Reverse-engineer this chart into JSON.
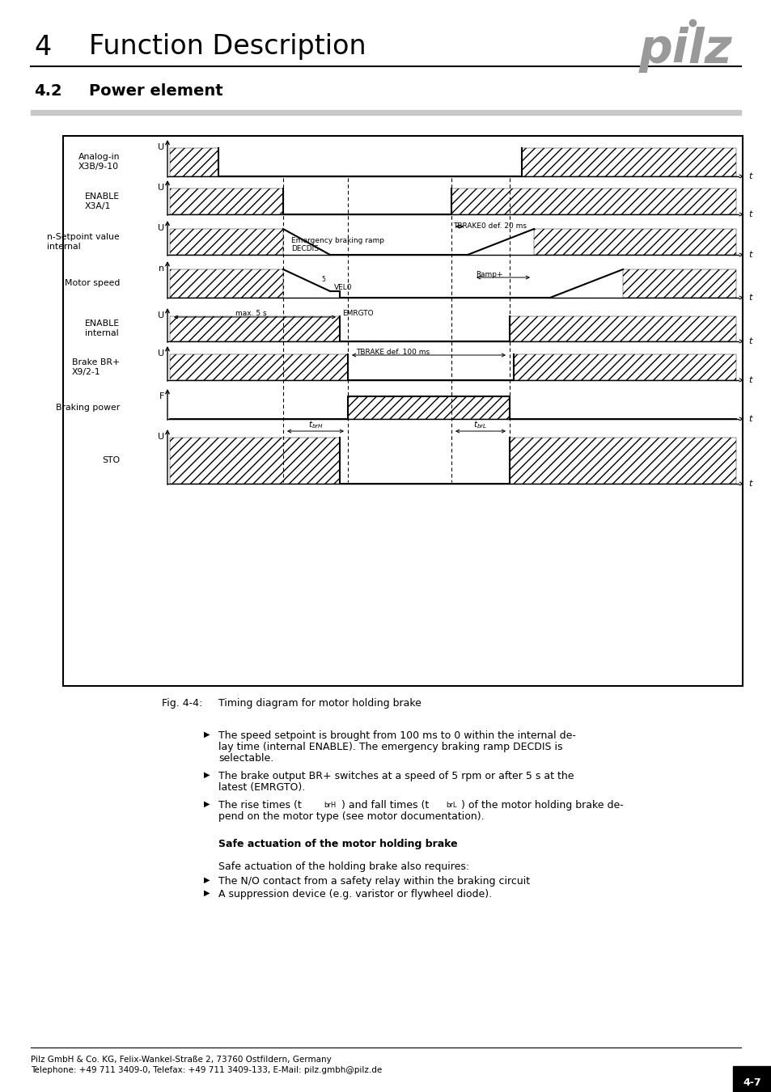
{
  "title_num": "4",
  "title_text": "Function Description",
  "section_num": "4.2",
  "section_title": "Power element",
  "page_label": "4-7",
  "fig_caption_label": "Fig. 4-4:",
  "fig_caption_text": "Timing diagram for motor holding brake",
  "footer_line1": "Pilz GmbH & Co. KG, Felix-Wankel-Straße 2, 73760 Ostfildern, Germany",
  "footer_line2": "Telephone: +49 711 3409-0, Telefax: +49 711 3409-133, E-Mail: pilz.gmbh@pilz.de",
  "bullet1_line1": "The speed setpoint is brought from 100 ms to 0 within the internal de-",
  "bullet1_line2": "lay time (internal ENABLE). The emergency braking ramp DECDIS is",
  "bullet1_line3": "selectable.",
  "bullet2_line1": "The brake output BR+ switches at a speed of 5 rpm or after 5 s at the",
  "bullet2_line2": "latest (EMRGTO).",
  "bullet3_line1": "The rise times (t",
  "bullet3_sub1": "brH",
  "bullet3_mid": ") and fall times (t",
  "bullet3_sub2": "brL",
  "bullet3_end": ") of the motor holding brake de-",
  "bullet3_line2": "pend on the motor type (see motor documentation).",
  "safe_header": "Safe actuation of the motor holding brake",
  "safe_intro": "Safe actuation of the holding brake also requires:",
  "safe_bullet1": "The N/O contact from a safety relay within the braking circuit",
  "safe_bullet2": "A suppression device (e.g. varistor or flywheel diode).",
  "signal_labels": [
    "Analog-in\nX3B/9-10",
    "ENABLE\nX3A/1",
    "n-Setpoint value\ninternal",
    "Motor speed",
    "ENABLE\ninternal",
    "Brake BR+\nX9/2-1",
    "Braking power",
    "STO"
  ],
  "signal_ylabels": [
    "U",
    "U",
    "U",
    "n",
    "U",
    "U",
    "F",
    "U"
  ],
  "ann_emerg": "Emergency braking ramp",
  "ann_decdis": "DECDIS",
  "ann_tbrake0": "TBRAKE0 def. 20 ms",
  "ann_tbrake": "TBRAKE def. 100 ms",
  "ann_max5s": "max. 5 s",
  "ann_emrgto": "EMRGTO",
  "ann_vel0": "VEL0",
  "ann_ramp": "Ramp+",
  "ann_tbrH": "t",
  "ann_tbrL": "t"
}
